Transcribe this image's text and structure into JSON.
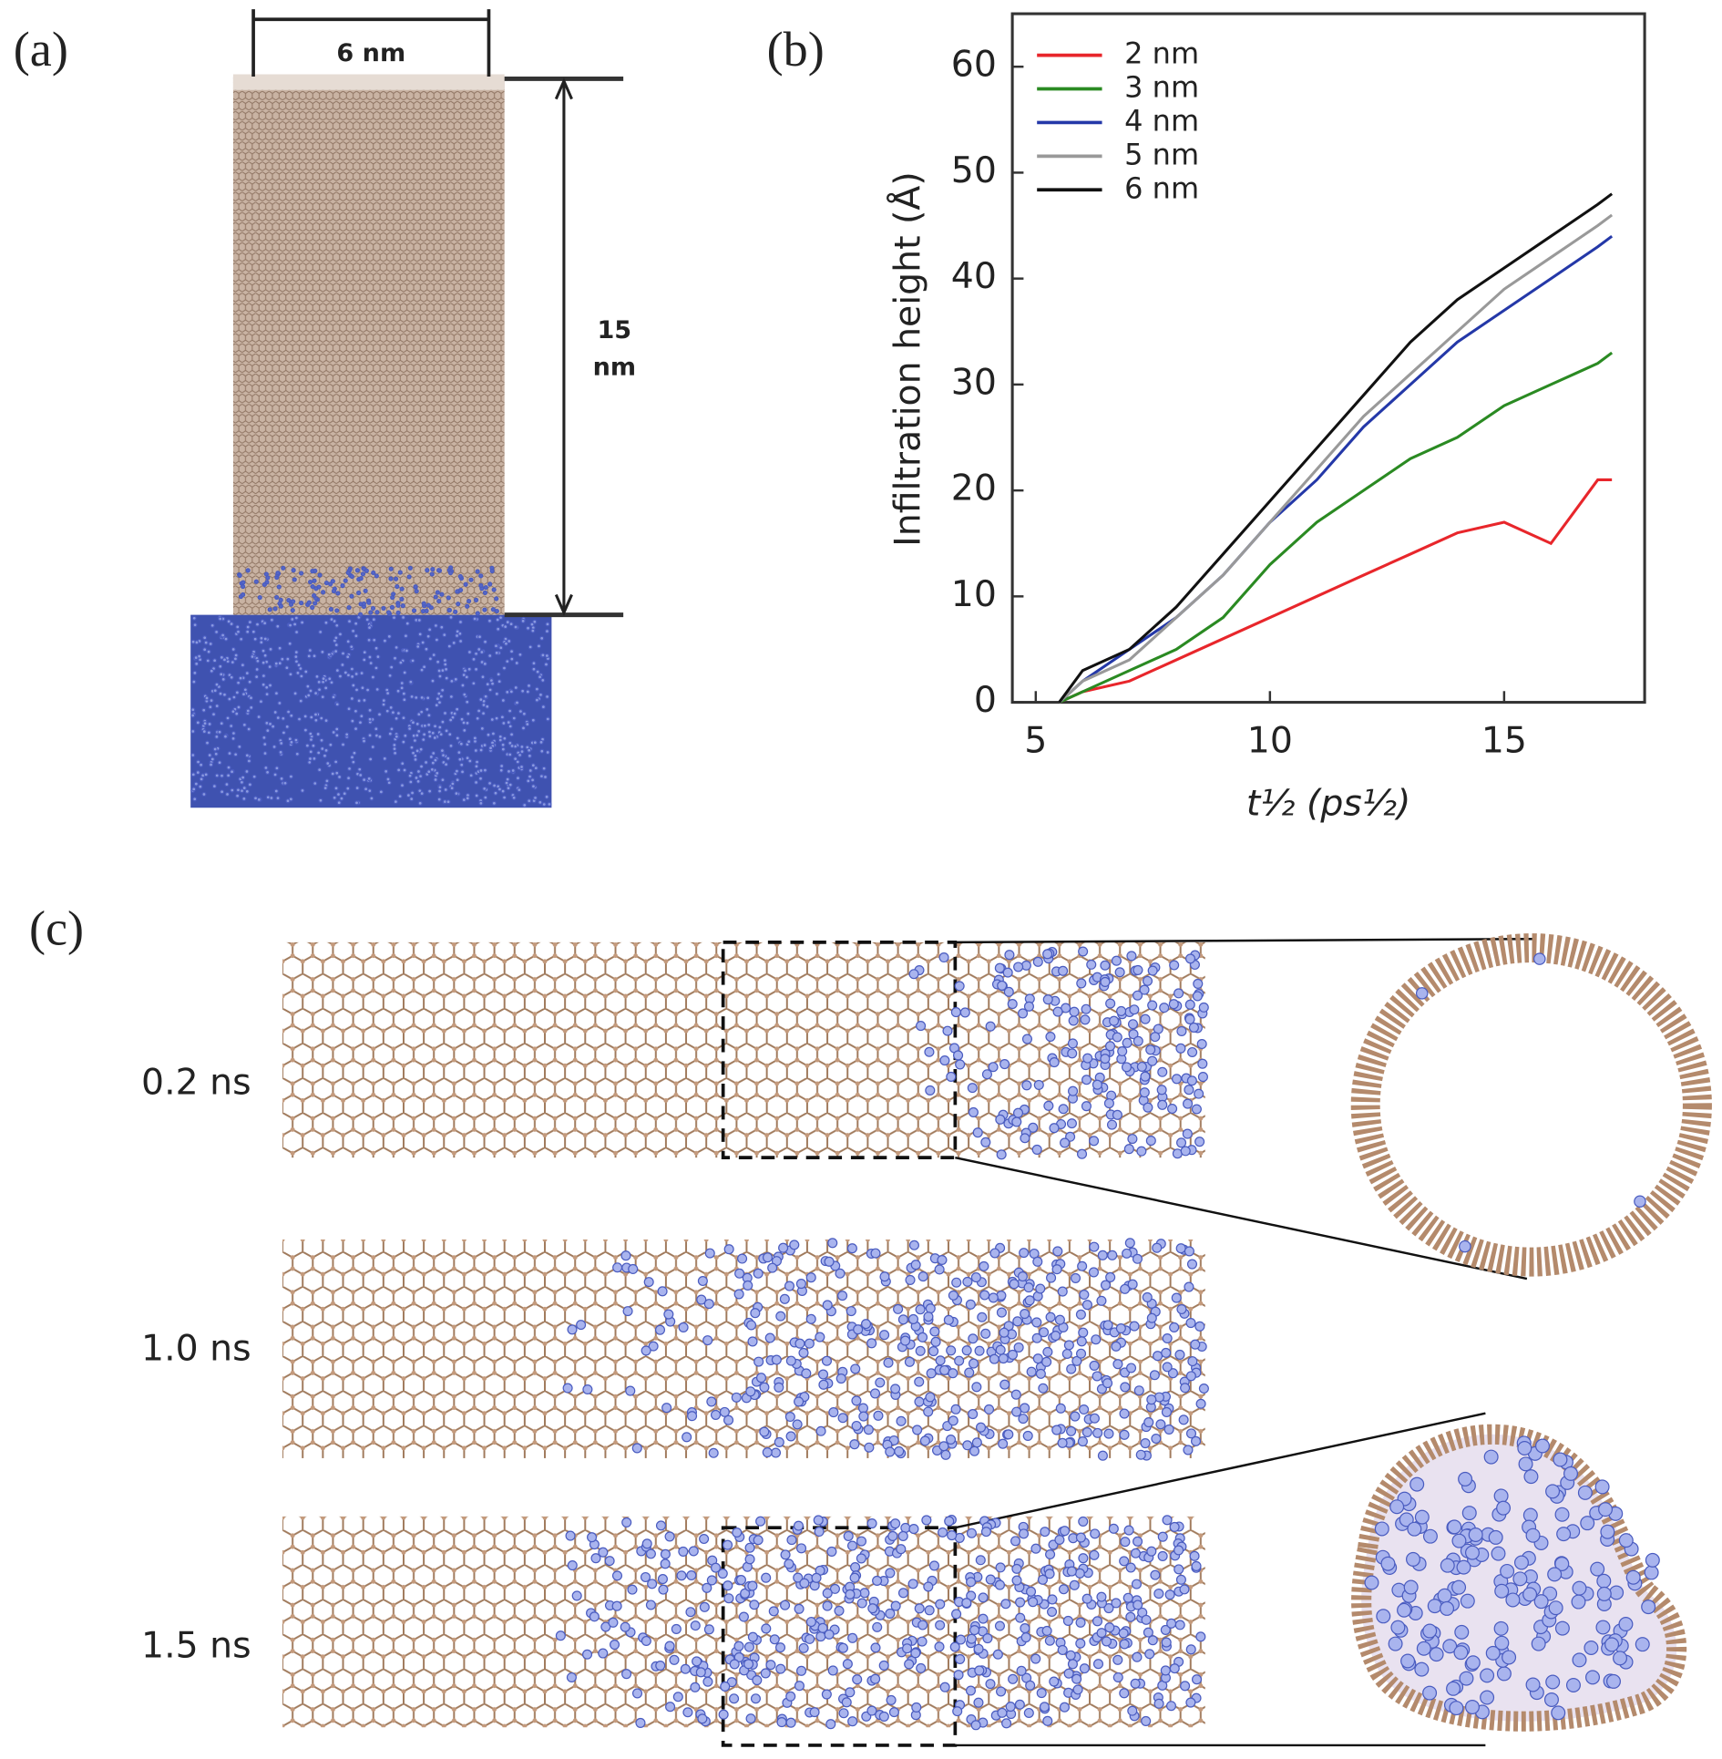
{
  "panels": {
    "a": {
      "label": "(a)",
      "width_label": "6 nm",
      "height_label": [
        "15",
        "nm"
      ]
    },
    "b": {
      "label": "(b)"
    },
    "c": {
      "label": "(c)",
      "times": [
        "0.2 ns",
        "1.0 ns",
        "1.5 ns"
      ]
    }
  },
  "chart_data": {
    "type": "line",
    "xlabel": "t½ (ps½)",
    "ylabel": "Infiltration height (Å)",
    "x": [
      5.5,
      6,
      7,
      8,
      9,
      10,
      11,
      12,
      13,
      14,
      15,
      16,
      16.5,
      17,
      17.3
    ],
    "series": [
      {
        "name": "2 nm",
        "color": "#e8262b",
        "values": [
          0,
          1,
          2,
          4,
          6,
          8,
          10,
          12,
          14,
          16,
          17,
          15,
          18,
          21,
          21
        ]
      },
      {
        "name": "3 nm",
        "color": "#2a8a22",
        "values": [
          0,
          1,
          3,
          5,
          8,
          13,
          17,
          20,
          23,
          25,
          28,
          30,
          31,
          32,
          33
        ]
      },
      {
        "name": "4 nm",
        "color": "#2438a8",
        "values": [
          0,
          2,
          5,
          8,
          12,
          17,
          21,
          26,
          30,
          34,
          37,
          40,
          41.5,
          43,
          44
        ]
      },
      {
        "name": "5 nm",
        "color": "#999999",
        "values": [
          0,
          2,
          4,
          8,
          12,
          17,
          22,
          27,
          31,
          35,
          39,
          42,
          43.5,
          45,
          46
        ]
      },
      {
        "name": "6 nm",
        "color": "#111111",
        "values": [
          0,
          3,
          5,
          9,
          14,
          19,
          24,
          29,
          34,
          38,
          41,
          44,
          45.5,
          47,
          48
        ]
      }
    ],
    "xlim": [
      4.5,
      18
    ],
    "xticks": [
      5,
      10,
      15
    ],
    "ylim": [
      0,
      65
    ],
    "yticks": [
      0,
      10,
      20,
      30,
      40,
      50,
      60
    ],
    "legend": "upper left"
  }
}
